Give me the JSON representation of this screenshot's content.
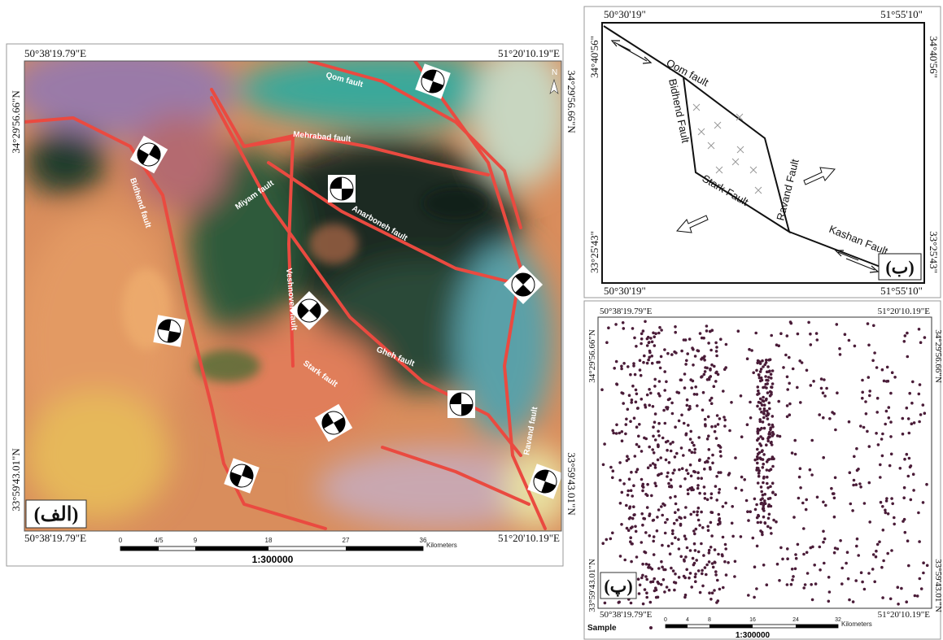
{
  "panels": [
    {
      "label": "(الف)",
      "coords": {
        "top_left": "50°38'19.79\"E",
        "top_right": "51°20'10.19\"E",
        "bottom_left": "50°38'19.79\"E",
        "bottom_right": "51°20'10.19\"E",
        "left_top": "34°29'56.66\"N",
        "left_bottom": "33°59'43.01\"N",
        "right_top": "34°29'56.66\"N",
        "right_bottom": "33°59'43.01\"N"
      },
      "north": "N",
      "faults": [
        "Qom fault",
        "Mehrabad fault",
        "Miyam fault",
        "Anarboneh fault",
        "Bidhend fault",
        "Veshnoveh fault",
        "Stark fault",
        "Gheh fault",
        "Ravand fault"
      ],
      "scale": {
        "ticks": [
          "0",
          "4/5",
          "9",
          "18",
          "27",
          "36"
        ],
        "unit": "Kilometers",
        "ratio": "1:300000"
      }
    },
    {
      "label": "(ب)",
      "coords": {
        "top_left": "50°30'19\"",
        "top_right": "51°55'10\"",
        "bottom_left": "50°30'19\"",
        "bottom_right": "51°55'10\"",
        "left_top": "34°40'56\"",
        "left_bottom": "33°25'43\"",
        "right_top": "34°40'56\"",
        "right_bottom": "33°25'43\""
      },
      "faults": [
        "Qom fault",
        "Bidhend Fault",
        "Ravand Fault",
        "Stark Fault",
        "Kashan Fault"
      ]
    },
    {
      "label": "(پ)",
      "coords": {
        "top_left": "50°38'19.79\"E",
        "top_right": "51°20'10.19\"E",
        "bottom_left": "50°38'19.79\"E",
        "bottom_right": "51°20'10.19\"E",
        "left_top": "34°29'56.66\"N",
        "left_bottom": "33°59'43.01\"N",
        "right_top": "34°29'56.66\"N",
        "right_bottom": "33°59'43.01\"N"
      },
      "legend": "Sample",
      "scale": {
        "ticks": [
          "0",
          "4",
          "8",
          "16",
          "24",
          "32"
        ],
        "unit": "Kilometers",
        "ratio": "1:300000"
      }
    }
  ]
}
